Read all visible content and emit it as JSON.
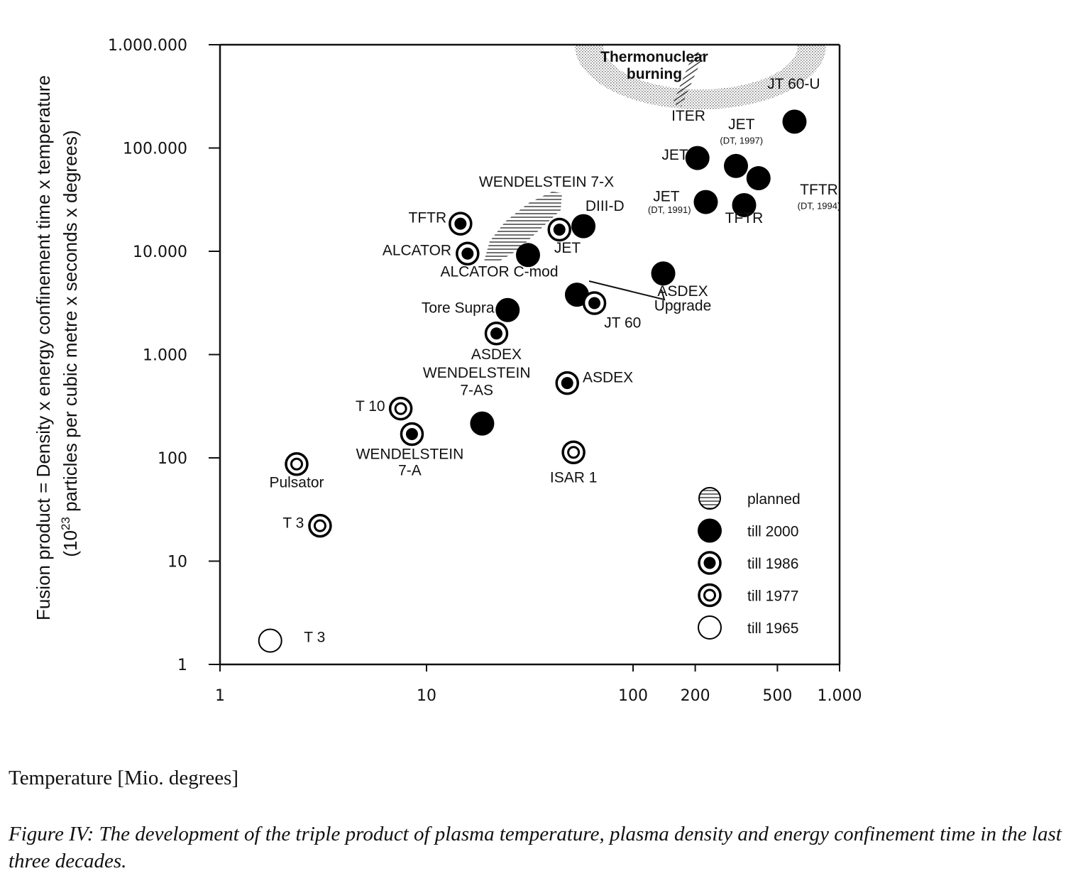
{
  "chart_data": {
    "type": "scatter",
    "x_scale": "log",
    "y_scale": "log",
    "xlim": [
      1,
      1000
    ],
    "ylim": [
      1,
      1000000
    ],
    "x_ticks": [
      {
        "value": 1,
        "label": "1"
      },
      {
        "value": 10,
        "label": "10"
      },
      {
        "value": 100,
        "label": "100"
      },
      {
        "value": 200,
        "label": "200"
      },
      {
        "value": 500,
        "label": "500"
      },
      {
        "value": 1000,
        "label": "1.000"
      }
    ],
    "y_ticks": [
      {
        "value": 1,
        "label": "1"
      },
      {
        "value": 10,
        "label": "10"
      },
      {
        "value": 100,
        "label": "100"
      },
      {
        "value": 1000,
        "label": "1.000"
      },
      {
        "value": 10000,
        "label": "10.000"
      },
      {
        "value": 100000,
        "label": "100.000"
      },
      {
        "value": 1000000,
        "label": "1.000.000"
      }
    ],
    "ylabel_line1": "Fusion product  =  Density x energy confinement time x temperature",
    "ylabel_line2_pre": "(10",
    "ylabel_line2_sup": "23",
    "ylabel_line2_post": " particles per cubic metre x seconds x degrees)",
    "xlabel": "Temperature [Mio. degrees]",
    "regions": {
      "burning_label": [
        "Thermonuclear",
        "burning"
      ],
      "iter_label": "ITER",
      "w7x_label": "WENDELSTEIN 7-X"
    },
    "points": [
      {
        "x": 1.75,
        "y": 1.7,
        "cat": "till 1965"
      },
      {
        "x": 2.35,
        "y": 87,
        "cat": "till 1977"
      },
      {
        "x": 3.05,
        "y": 22,
        "cat": "till 1977"
      },
      {
        "x": 7.5,
        "y": 300,
        "cat": "till 1977"
      },
      {
        "x": 8.5,
        "y": 170,
        "cat": "till 1986"
      },
      {
        "x": 18.6,
        "y": 215,
        "cat": "till 2000"
      },
      {
        "x": 14.6,
        "y": 18500,
        "cat": "till 1986"
      },
      {
        "x": 15.8,
        "y": 9500,
        "cat": "till 1986"
      },
      {
        "x": 31,
        "y": 9200,
        "cat": "till 2000"
      },
      {
        "x": 24.7,
        "y": 2700,
        "cat": "till 2000"
      },
      {
        "x": 21.8,
        "y": 1600,
        "cat": "till 1986"
      },
      {
        "x": 44,
        "y": 16200,
        "cat": "till 1986"
      },
      {
        "x": 57.5,
        "y": 17500,
        "cat": "till 2000"
      },
      {
        "x": 53.5,
        "y": 3800,
        "cat": "till 2000"
      },
      {
        "x": 65,
        "y": 3150,
        "cat": "till 1986"
      },
      {
        "x": 140,
        "y": 6100,
        "cat": "till 2000"
      },
      {
        "x": 48,
        "y": 530,
        "cat": "till 1986"
      },
      {
        "x": 51.5,
        "y": 113,
        "cat": "till 1977"
      },
      {
        "x": 205,
        "y": 80000,
        "cat": "till 2000"
      },
      {
        "x": 225,
        "y": 30000,
        "cat": "till 2000"
      },
      {
        "x": 315,
        "y": 67000,
        "cat": "till 2000"
      },
      {
        "x": 405,
        "y": 51000,
        "cat": "till 2000"
      },
      {
        "x": 345,
        "y": 28000,
        "cat": "till 2000"
      },
      {
        "x": 605,
        "y": 180000,
        "cat": "till 2000"
      }
    ],
    "point_labels": [
      {
        "text": "T 3",
        "x": 2.55,
        "y": 1.65,
        "anchor": "start"
      },
      {
        "text": "Pulsator",
        "x": 2.35,
        "y": 52,
        "anchor": "middle"
      },
      {
        "text": "T 3",
        "x": 2.55,
        "y": 21,
        "anchor": "end"
      },
      {
        "text": "T 10",
        "x": 6.3,
        "y": 285,
        "anchor": "end"
      },
      {
        "text": "WENDELSTEIN",
        "x": 8.3,
        "y": 98,
        "anchor": "middle"
      },
      {
        "text": "7-A",
        "x": 8.3,
        "y": 68,
        "anchor": "middle"
      },
      {
        "text": "WENDELSTEIN",
        "x": 17.5,
        "y": 600,
        "anchor": "middle"
      },
      {
        "text": "7-AS",
        "x": 17.5,
        "y": 405,
        "anchor": "middle"
      },
      {
        "text": "TFTR",
        "x": 12.5,
        "y": 19000,
        "anchor": "end"
      },
      {
        "text": "ALCATOR",
        "x": 13.2,
        "y": 9200,
        "anchor": "end"
      },
      {
        "text": "ALCATOR C-mod",
        "x": 22.5,
        "y": 5700,
        "anchor": "middle"
      },
      {
        "text": "Tore Supra",
        "x": 21.3,
        "y": 2550,
        "anchor": "end"
      },
      {
        "text": "ASDEX",
        "x": 21.8,
        "y": 900,
        "anchor": "middle"
      },
      {
        "text": "JET",
        "x": 41.5,
        "y": 9700,
        "anchor": "start"
      },
      {
        "text": "DIII-D",
        "x": 73,
        "y": 24600,
        "anchor": "middle"
      },
      {
        "text": "JT 60",
        "x": 89,
        "y": 1820,
        "anchor": "middle"
      },
      {
        "text": "ASDEX",
        "x": 174,
        "y": 3700,
        "anchor": "middle"
      },
      {
        "text": "Upgrade",
        "x": 174,
        "y": 2670,
        "anchor": "middle"
      },
      {
        "text": "ASDEX",
        "x": 57,
        "y": 540,
        "anchor": "start"
      },
      {
        "text": "ISAR 1",
        "x": 51.5,
        "y": 58,
        "anchor": "middle"
      },
      {
        "text": "JET",
        "x": 185,
        "y": 77000,
        "anchor": "end"
      },
      {
        "text": "JET",
        "x": 145,
        "y": 30500,
        "anchor": "middle"
      },
      {
        "text": "JET",
        "x": 335,
        "y": 152000,
        "anchor": "middle"
      },
      {
        "text": "TFTR",
        "x": 345,
        "y": 18900,
        "anchor": "middle"
      },
      {
        "text": "TFTR",
        "x": 795,
        "y": 35500,
        "anchor": "middle"
      },
      {
        "text": "JT 60-U",
        "x": 600,
        "y": 375000,
        "anchor": "middle"
      }
    ],
    "small_labels": [
      {
        "text": "(DT, 1997)",
        "x": 335,
        "y": 110000,
        "anchor": "middle"
      },
      {
        "text": "(DT, 1991)",
        "x": 150,
        "y": 23500,
        "anchor": "middle"
      },
      {
        "text": "(DT, 1994)",
        "x": 795,
        "y": 25600,
        "anchor": "middle"
      }
    ],
    "legend": {
      "position": "bottom-right",
      "entries": [
        {
          "cat": "planned",
          "label": "planned"
        },
        {
          "cat": "till 2000",
          "label": "till  2000"
        },
        {
          "cat": "till 1986",
          "label": "till  1986"
        },
        {
          "cat": "till 1977",
          "label": "till  1977"
        },
        {
          "cat": "till 1965",
          "label": "till  1965"
        }
      ]
    }
  },
  "caption": "Figure IV: The development of the triple product of plasma temperature, plasma density and energy confinement time in the last three decades."
}
